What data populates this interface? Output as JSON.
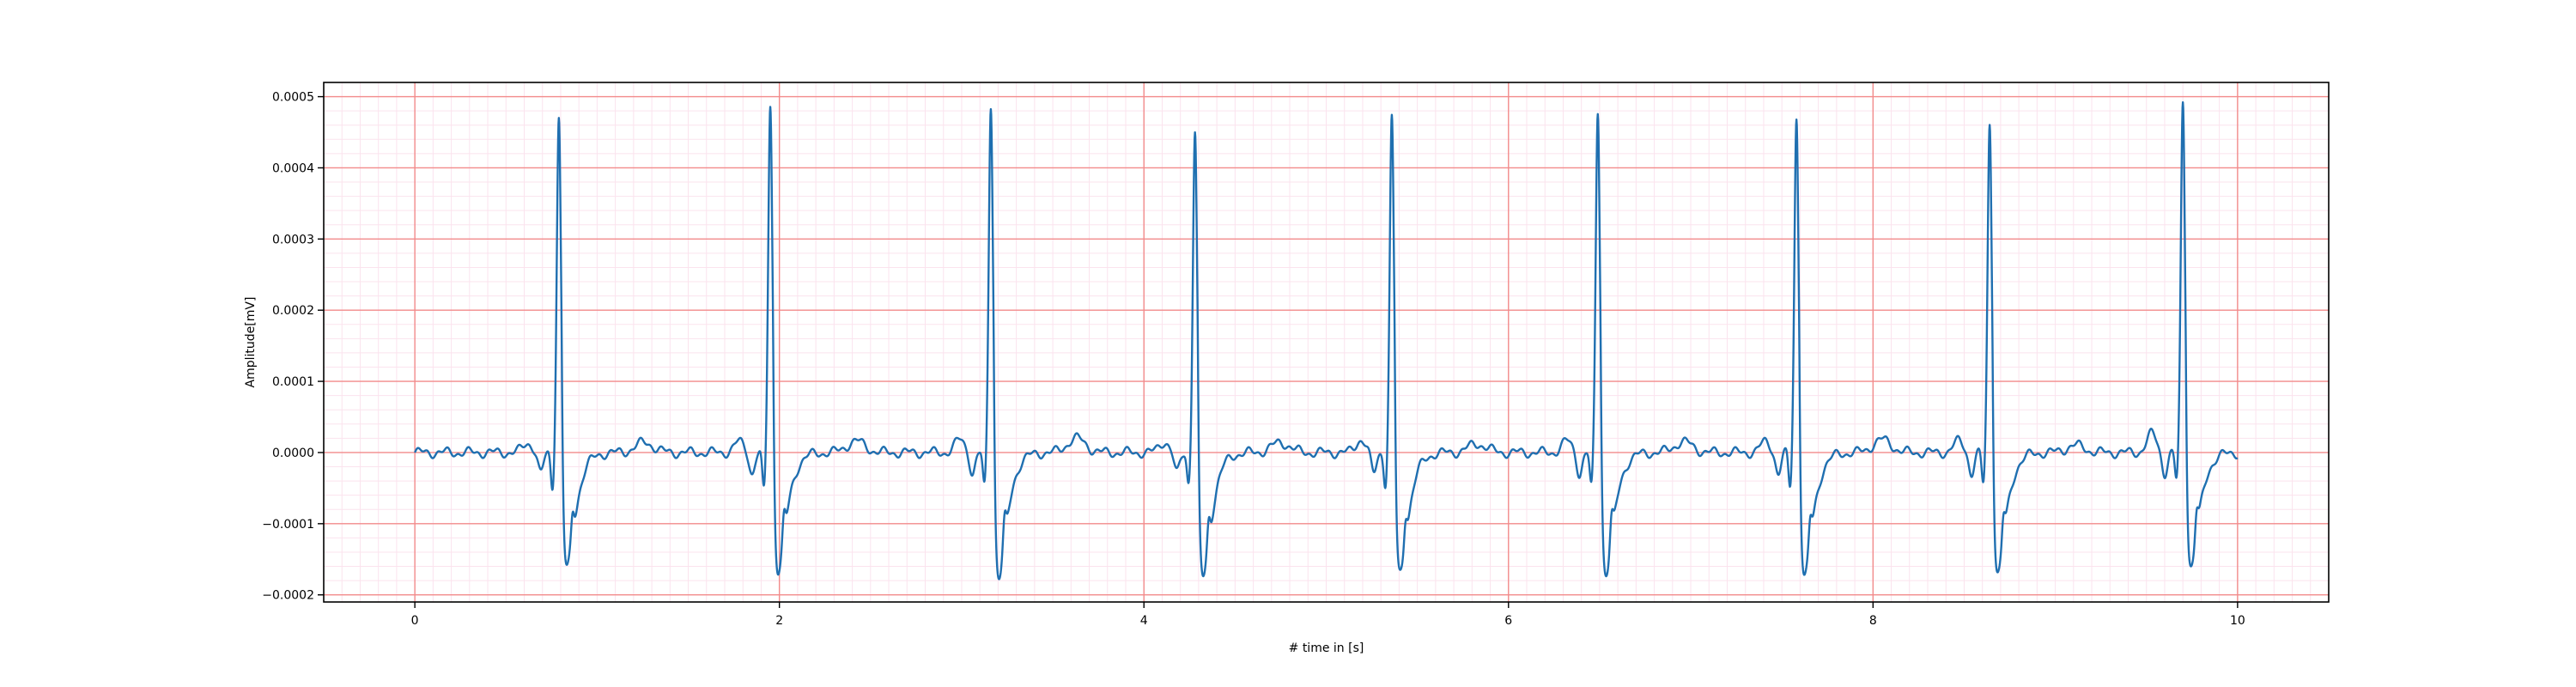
{
  "chart_data": {
    "type": "line",
    "xlabel": "# time in [s]",
    "ylabel": "Amplitude[mV]",
    "xlim": [
      -0.5,
      10.5
    ],
    "ylim": [
      -0.00021,
      0.00052
    ],
    "x_ticks": [
      0,
      2,
      4,
      6,
      8,
      10
    ],
    "x_tick_labels": [
      "0",
      "2",
      "4",
      "6",
      "8",
      "10"
    ],
    "y_ticks": [
      -0.0002,
      -0.0001,
      0.0,
      0.0001,
      0.0002,
      0.0003,
      0.0004,
      0.0005
    ],
    "y_tick_labels": [
      "−0.0002",
      "−0.0001",
      "0.0000",
      "0.0001",
      "0.0002",
      "0.0003",
      "0.0004",
      "0.0005"
    ],
    "grid": true,
    "x_minor_step": 0.1,
    "y_minor_step": 2e-05,
    "grid_major_color": "#f28b8b",
    "grid_minor_color": "#fbe3ee",
    "line_color": "#1f6fb0",
    "t_end": 10.0,
    "beats": [
      {
        "r_time": 0.79,
        "r_peak": 0.00047,
        "s_trough": -0.000163,
        "pre_dip": -5e-05,
        "pre_notch": -3e-05,
        "t_amp": 1.4e-05,
        "p_amp": 1.3e-05
      },
      {
        "r_time": 1.95,
        "r_peak": 0.000487,
        "s_trough": -0.000167,
        "pre_dip": -5.5e-05,
        "pre_notch": -3e-05,
        "t_amp": 1.6e-05,
        "p_amp": 1.5e-05
      },
      {
        "r_time": 3.16,
        "r_peak": 0.000489,
        "s_trough": -0.000175,
        "pre_dip": -5e-05,
        "pre_notch": -3e-05,
        "t_amp": 2e-05,
        "p_amp": 1.8e-05
      },
      {
        "r_time": 4.28,
        "r_peak": 0.00045,
        "s_trough": -0.000175,
        "pre_dip": -4.3e-05,
        "pre_notch": -3e-05,
        "t_amp": 1.4e-05,
        "p_amp": 1.5e-05
      },
      {
        "r_time": 5.36,
        "r_peak": 0.00047,
        "s_trough": -0.00017,
        "pre_dip": -4.5e-05,
        "pre_notch": -3e-05,
        "t_amp": 1.2e-05,
        "p_amp": 1.8e-05
      },
      {
        "r_time": 6.49,
        "r_peak": 0.00048,
        "s_trough": -0.00017,
        "pre_dip": -5e-05,
        "pre_notch": -3e-05,
        "t_amp": 1.5e-05,
        "p_amp": 1.6e-05
      },
      {
        "r_time": 7.58,
        "r_peak": 0.00047,
        "s_trough": -0.000175,
        "pre_dip": -5e-05,
        "pre_notch": -3e-05,
        "t_amp": 1.8e-05,
        "p_amp": 1.5e-05
      },
      {
        "r_time": 8.64,
        "r_peak": 0.000462,
        "s_trough": -0.00017,
        "pre_dip": -4.5e-05,
        "pre_notch": -3e-05,
        "t_amp": 1e-05,
        "p_amp": 1.6e-05
      },
      {
        "r_time": 9.7,
        "r_peak": 0.000493,
        "s_trough": -0.00016,
        "pre_dip": -4e-05,
        "pre_notch": -3e-05,
        "t_amp": 1.3e-05,
        "p_amp": 2.6e-05
      }
    ]
  }
}
